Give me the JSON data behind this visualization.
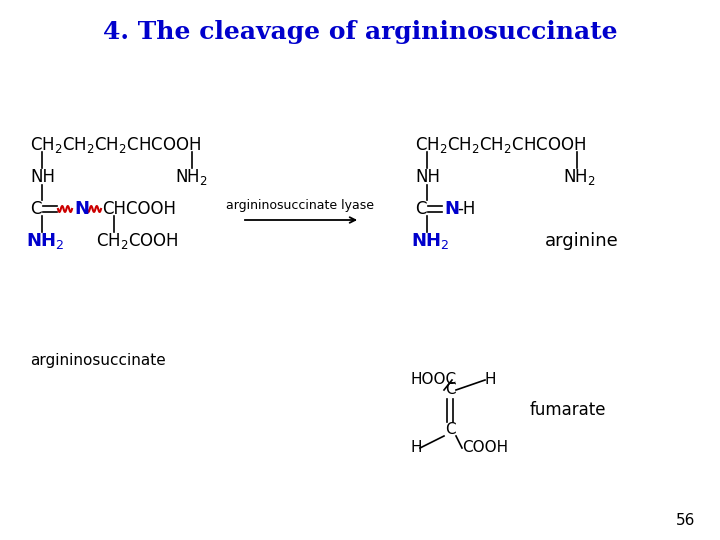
{
  "title": "4. The cleavage of argininosuccinate",
  "title_color": "#0000CC",
  "title_fontsize": 18,
  "bg_color": "#FFFFFF",
  "page_number": "56",
  "enzyme_label": "argininosuccinate lyase",
  "substrate_label": "argininosuccinate",
  "product1_label": "arginine",
  "product2_label": "fumarate",
  "blue_color": "#0000CC",
  "red_color": "#CC0000",
  "black_color": "#000000"
}
